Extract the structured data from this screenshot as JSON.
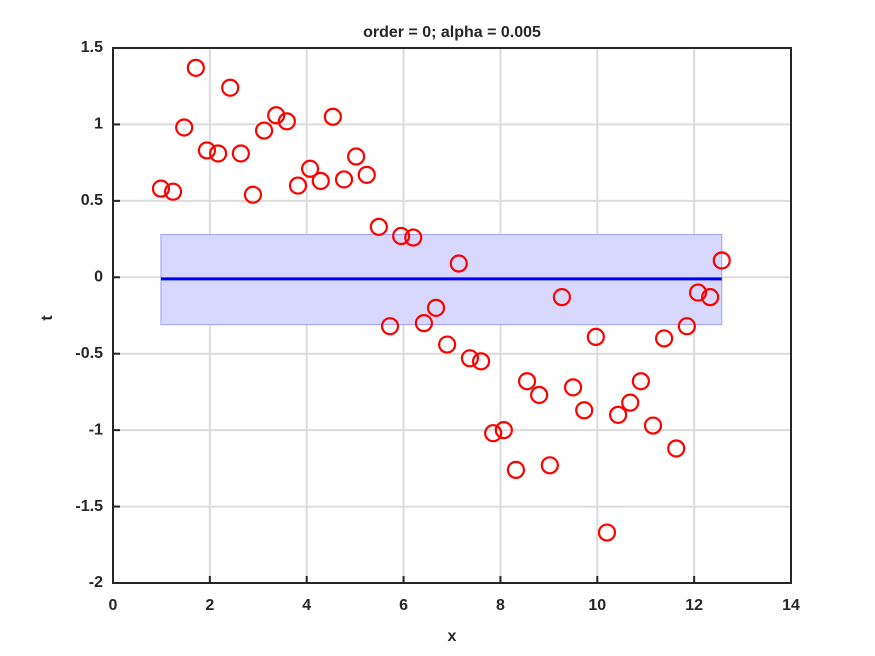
{
  "chart_data": {
    "type": "scatter",
    "title": "order = 0; alpha = 0.005",
    "xlabel": "x",
    "ylabel": "t",
    "x": [
      0.99,
      1.24,
      1.47,
      1.71,
      1.94,
      2.17,
      2.42,
      2.64,
      2.89,
      3.12,
      3.37,
      3.59,
      3.82,
      4.07,
      4.29,
      4.54,
      4.77,
      5.02,
      5.24,
      5.49,
      5.72,
      5.95,
      6.2,
      6.42,
      6.67,
      6.9,
      7.14,
      7.37,
      7.6,
      7.85,
      8.07,
      8.32,
      8.55,
      8.8,
      9.02,
      9.27,
      9.5,
      9.73,
      9.97,
      10.2,
      10.43,
      10.68,
      10.9,
      11.15,
      11.38,
      11.63,
      11.85,
      12.08,
      12.33,
      12.57
    ],
    "values": [
      0.58,
      0.56,
      0.98,
      1.37,
      0.83,
      0.81,
      1.24,
      0.81,
      0.54,
      0.96,
      1.06,
      1.02,
      0.6,
      0.71,
      0.63,
      1.05,
      0.64,
      0.79,
      0.67,
      0.33,
      -0.32,
      0.27,
      0.26,
      -0.3,
      -0.2,
      -0.44,
      0.09,
      -0.53,
      -0.55,
      -1.02,
      -1.0,
      -1.26,
      -0.68,
      -0.77,
      -1.23,
      -0.13,
      -0.72,
      -0.87,
      -0.39,
      -1.67,
      -0.9,
      -0.82,
      -0.68,
      -0.97,
      -0.4,
      -1.12,
      -0.32,
      -0.1,
      -0.13,
      0.11
    ],
    "color": "#ff0000",
    "fit": {
      "x": [
        0.99,
        12.57
      ],
      "values": [
        -0.01,
        -0.01
      ],
      "color": "#0000ff"
    },
    "band": {
      "x": [
        0.99,
        12.57
      ],
      "upper": [
        0.28,
        0.28
      ],
      "lower": [
        -0.31,
        -0.31
      ],
      "color": "#d6d6ff"
    },
    "xlim": [
      0,
      14
    ],
    "xticks": [
      0,
      2,
      4,
      6,
      8,
      10,
      12,
      14
    ],
    "ylim": [
      -2,
      1.5
    ],
    "yticks": [
      -2,
      -1.5,
      -1,
      -0.5,
      0,
      0.5,
      1,
      1.5
    ],
    "grid": true
  }
}
